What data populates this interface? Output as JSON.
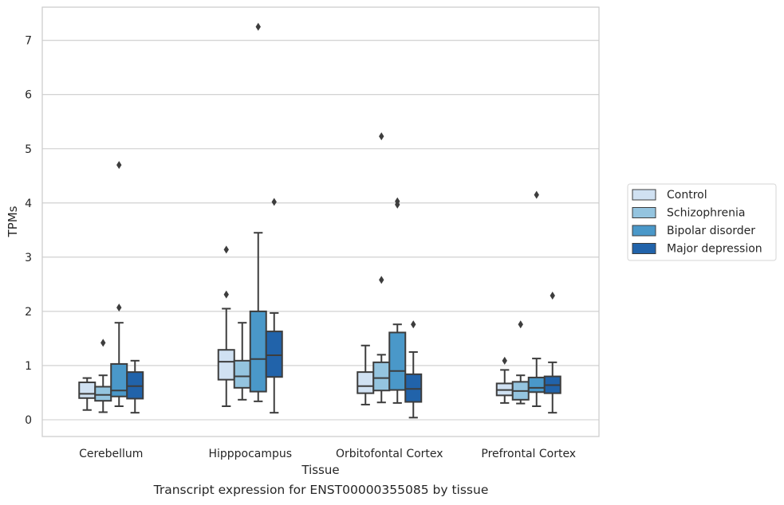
{
  "caption": "Transcript expression for ENST00000355085 by tissue",
  "chart_data": {
    "type": "box",
    "xlabel": "Tissue",
    "ylabel": "TPMs",
    "ylim": [
      -0.3,
      7.6
    ],
    "yticks": [
      0,
      1,
      2,
      3,
      4,
      5,
      6,
      7
    ],
    "grid": "horizontal",
    "legend_position": "right",
    "categories": [
      "Cerebellum",
      "Hipppocampus",
      "Orbitofontal Cortex",
      "Prefrontal Cortex"
    ],
    "series": [
      {
        "name": "Control",
        "color": "#d0e1f2",
        "boxes": [
          {
            "whislo": 0.18,
            "q1": 0.4,
            "med": 0.48,
            "q3": 0.69,
            "whishi": 0.77,
            "fliers": []
          },
          {
            "whislo": 0.25,
            "q1": 0.74,
            "med": 1.07,
            "q3": 1.29,
            "whishi": 2.05,
            "fliers": [
              2.31,
              3.14
            ]
          },
          {
            "whislo": 0.28,
            "q1": 0.49,
            "med": 0.62,
            "q3": 0.88,
            "whishi": 1.37,
            "fliers": []
          },
          {
            "whislo": 0.31,
            "q1": 0.45,
            "med": 0.55,
            "q3": 0.67,
            "whishi": 0.92,
            "fliers": [
              1.09
            ]
          }
        ]
      },
      {
        "name": "Schizophrenia",
        "color": "#94c4df",
        "boxes": [
          {
            "whislo": 0.14,
            "q1": 0.35,
            "med": 0.46,
            "q3": 0.61,
            "whishi": 0.82,
            "fliers": [
              1.42
            ]
          },
          {
            "whislo": 0.37,
            "q1": 0.59,
            "med": 0.8,
            "q3": 1.09,
            "whishi": 1.79,
            "fliers": []
          },
          {
            "whislo": 0.32,
            "q1": 0.54,
            "med": 0.77,
            "q3": 1.06,
            "whishi": 1.2,
            "fliers": [
              2.58,
              5.23
            ]
          },
          {
            "whislo": 0.3,
            "q1": 0.37,
            "med": 0.53,
            "q3": 0.7,
            "whishi": 0.82,
            "fliers": [
              1.76
            ]
          }
        ]
      },
      {
        "name": "Bipolar disorder",
        "color": "#4a98c9",
        "boxes": [
          {
            "whislo": 0.25,
            "q1": 0.43,
            "med": 0.54,
            "q3": 1.03,
            "whishi": 1.79,
            "fliers": [
              2.07,
              4.7
            ]
          },
          {
            "whislo": 0.34,
            "q1": 0.52,
            "med": 1.12,
            "q3": 2.0,
            "whishi": 3.45,
            "fliers": [
              7.25
            ]
          },
          {
            "whislo": 0.31,
            "q1": 0.55,
            "med": 0.9,
            "q3": 1.61,
            "whishi": 1.76,
            "fliers": [
              3.97,
              4.03
            ]
          },
          {
            "whislo": 0.25,
            "q1": 0.51,
            "med": 0.59,
            "q3": 0.78,
            "whishi": 1.13,
            "fliers": [
              4.15
            ]
          }
        ]
      },
      {
        "name": "Major depression",
        "color": "#2163aa",
        "boxes": [
          {
            "whislo": 0.13,
            "q1": 0.39,
            "med": 0.62,
            "q3": 0.88,
            "whishi": 1.09,
            "fliers": []
          },
          {
            "whislo": 0.13,
            "q1": 0.79,
            "med": 1.19,
            "q3": 1.63,
            "whishi": 1.97,
            "fliers": [
              4.02
            ]
          },
          {
            "whislo": 0.04,
            "q1": 0.33,
            "med": 0.57,
            "q3": 0.84,
            "whishi": 1.25,
            "fliers": [
              1.76
            ]
          },
          {
            "whislo": 0.13,
            "q1": 0.49,
            "med": 0.64,
            "q3": 0.8,
            "whishi": 1.06,
            "fliers": [
              2.29
            ]
          }
        ]
      }
    ]
  }
}
